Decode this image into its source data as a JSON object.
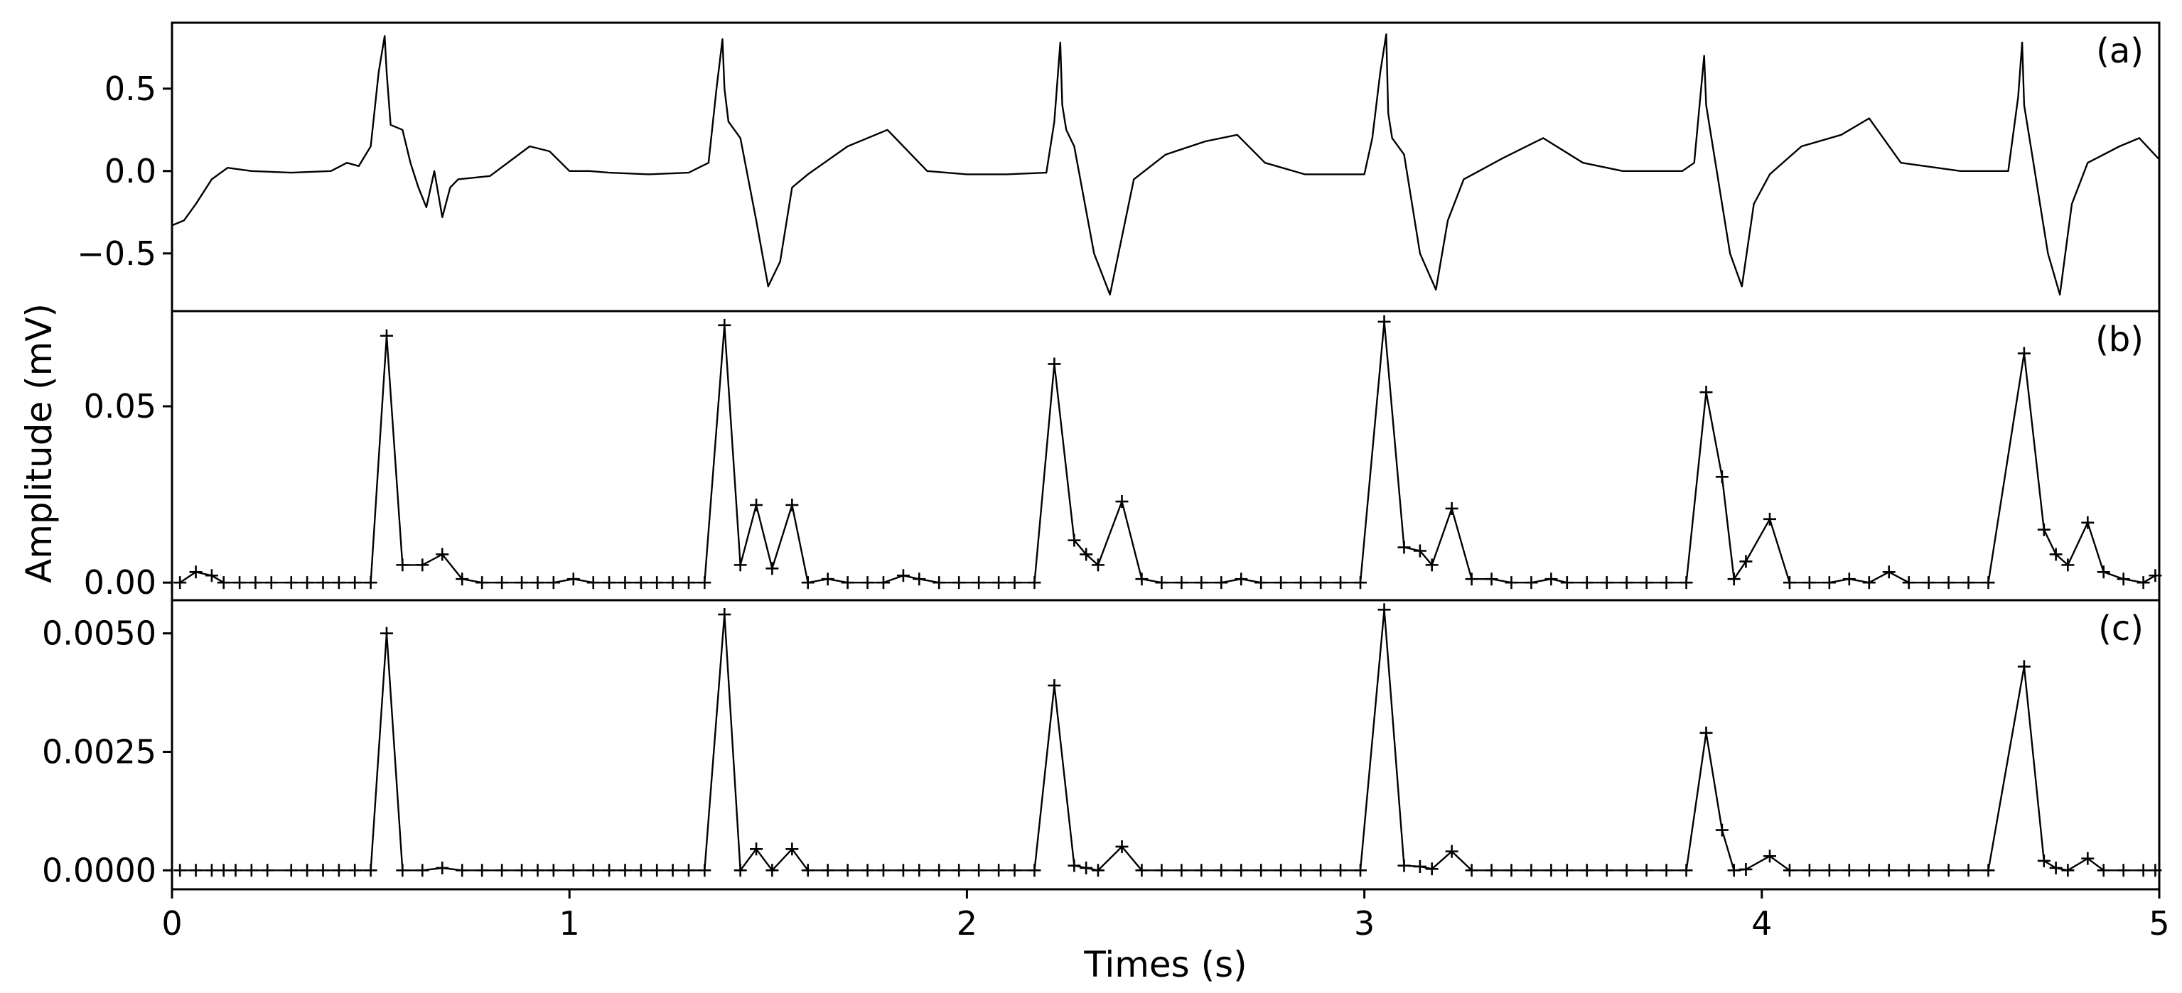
{
  "chart_data": {
    "type": "line",
    "xlabel": "Times (s)",
    "ylabel": "Amplitude (mV)",
    "xlim": [
      0,
      5
    ],
    "xticks": [
      "0",
      "1",
      "2",
      "3",
      "4",
      "5"
    ],
    "grid": false,
    "line_color": "#000000",
    "panels": [
      {
        "label": "(a)",
        "marker": "none",
        "ylim": [
          -0.85,
          0.9
        ],
        "yticks": [
          -0.5,
          0.0,
          0.5
        ],
        "ytick_labels": [
          "−0.5",
          "0.0",
          "0.5"
        ],
        "series": [
          {
            "x": [
              0,
              0.03,
              0.06,
              0.1,
              0.14,
              0.2,
              0.3,
              0.4,
              0.44,
              0.47,
              0.5,
              0.52,
              0.535,
              0.54,
              0.55,
              0.58,
              0.6,
              0.62,
              0.64,
              0.66,
              0.68,
              0.7,
              0.72,
              0.8,
              0.9,
              0.95,
              1.0,
              1.05,
              1.1,
              1.2,
              1.3,
              1.35,
              1.37,
              1.385,
              1.39,
              1.4,
              1.43,
              1.47,
              1.5,
              1.53,
              1.56,
              1.6,
              1.7,
              1.8,
              1.9,
              2.0,
              2.1,
              2.2,
              2.22,
              2.235,
              2.24,
              2.25,
              2.27,
              2.32,
              2.36,
              2.39,
              2.42,
              2.5,
              2.6,
              2.68,
              2.75,
              2.85,
              3.0,
              3.02,
              3.04,
              3.055,
              3.06,
              3.07,
              3.1,
              3.14,
              3.18,
              3.21,
              3.25,
              3.35,
              3.45,
              3.55,
              3.65,
              3.8,
              3.83,
              3.855,
              3.86,
              3.88,
              3.92,
              3.95,
              3.98,
              4.02,
              4.1,
              4.2,
              4.27,
              4.35,
              4.5,
              4.62,
              4.645,
              4.655,
              4.66,
              4.68,
              4.72,
              4.75,
              4.78,
              4.82,
              4.9,
              4.95,
              5.0
            ],
            "y": [
              -0.33,
              -0.3,
              -0.2,
              -0.05,
              0.02,
              0.0,
              -0.01,
              0.0,
              0.05,
              0.03,
              0.15,
              0.6,
              0.82,
              0.6,
              0.28,
              0.25,
              0.05,
              -0.1,
              -0.22,
              0.0,
              -0.28,
              -0.1,
              -0.05,
              -0.03,
              0.15,
              0.12,
              0.0,
              0.0,
              -0.01,
              -0.02,
              -0.01,
              0.05,
              0.5,
              0.8,
              0.5,
              0.3,
              0.2,
              -0.3,
              -0.7,
              -0.55,
              -0.1,
              -0.02,
              0.15,
              0.25,
              0.0,
              -0.02,
              -0.02,
              -0.01,
              0.3,
              0.78,
              0.4,
              0.25,
              0.15,
              -0.5,
              -0.75,
              -0.4,
              -0.05,
              0.1,
              0.18,
              0.22,
              0.05,
              -0.02,
              -0.02,
              0.2,
              0.6,
              0.83,
              0.35,
              0.2,
              0.1,
              -0.5,
              -0.72,
              -0.3,
              -0.05,
              0.08,
              0.2,
              0.05,
              0.0,
              0.0,
              0.05,
              0.7,
              0.4,
              0.1,
              -0.5,
              -0.7,
              -0.2,
              -0.02,
              0.15,
              0.22,
              0.32,
              0.05,
              0.0,
              0.0,
              0.45,
              0.78,
              0.4,
              0.1,
              -0.5,
              -0.75,
              -0.2,
              0.05,
              0.15,
              0.2,
              0.07
            ]
          }
        ]
      },
      {
        "label": "(b)",
        "marker": "+",
        "ylim": [
          -0.005,
          0.077
        ],
        "yticks": [
          0.0,
          0.05
        ],
        "ytick_labels": [
          "0.00",
          "0.05"
        ],
        "series": [
          {
            "x": [
              0.02,
              0.06,
              0.1,
              0.13,
              0.17,
              0.21,
              0.25,
              0.3,
              0.34,
              0.38,
              0.42,
              0.46,
              0.5,
              0.54,
              0.58,
              0.63,
              0.68,
              0.73,
              0.78,
              0.83,
              0.88,
              0.92,
              0.96,
              1.01,
              1.06,
              1.1,
              1.14,
              1.18,
              1.22,
              1.26,
              1.3,
              1.34,
              1.39,
              1.43,
              1.47,
              1.51,
              1.56,
              1.6,
              1.65,
              1.7,
              1.75,
              1.79,
              1.84,
              1.88,
              1.93,
              1.98,
              2.03,
              2.08,
              2.12,
              2.17,
              2.22,
              2.27,
              2.3,
              2.33,
              2.39,
              2.44,
              2.49,
              2.54,
              2.59,
              2.64,
              2.69,
              2.74,
              2.79,
              2.84,
              2.89,
              2.94,
              2.99,
              3.05,
              3.1,
              3.14,
              3.17,
              3.22,
              3.27,
              3.32,
              3.37,
              3.42,
              3.47,
              3.51,
              3.56,
              3.61,
              3.66,
              3.71,
              3.76,
              3.81,
              3.86,
              3.9,
              3.93,
              3.96,
              4.02,
              4.07,
              4.12,
              4.17,
              4.22,
              4.27,
              4.32,
              4.37,
              4.42,
              4.47,
              4.52,
              4.57,
              4.66,
              4.71,
              4.74,
              4.77,
              4.82,
              4.86,
              4.91,
              4.96,
              4.99
            ],
            "y": [
              0.0,
              0.003,
              0.002,
              0.0,
              0.0,
              0.0,
              0.0,
              0.0,
              0.0,
              0.0,
              0.0,
              0.0,
              0.0,
              0.07,
              0.005,
              0.005,
              0.008,
              0.001,
              0.0,
              0.0,
              0.0,
              0.0,
              0.0,
              0.001,
              0.0,
              0.0,
              0.0,
              0.0,
              0.0,
              0.0,
              0.0,
              0.0,
              0.073,
              0.005,
              0.022,
              0.004,
              0.022,
              0.0,
              0.001,
              0.0,
              0.0,
              0.0,
              0.002,
              0.001,
              0.0,
              0.0,
              0.0,
              0.0,
              0.0,
              0.0,
              0.062,
              0.012,
              0.008,
              0.005,
              0.023,
              0.001,
              0.0,
              0.0,
              0.0,
              0.0,
              0.001,
              0.0,
              0.0,
              0.0,
              0.0,
              0.0,
              0.0,
              0.074,
              0.01,
              0.009,
              0.005,
              0.021,
              0.001,
              0.001,
              0.0,
              0.0,
              0.001,
              0.0,
              0.0,
              0.0,
              0.0,
              0.0,
              0.0,
              0.0,
              0.054,
              0.03,
              0.001,
              0.006,
              0.018,
              0.0,
              0.0,
              0.0,
              0.001,
              0.0,
              0.003,
              0.0,
              0.0,
              0.0,
              0.0,
              0.0,
              0.065,
              0.015,
              0.008,
              0.005,
              0.017,
              0.003,
              0.001,
              0.0,
              0.002
            ]
          }
        ]
      },
      {
        "label": "(c)",
        "marker": "+",
        "ylim": [
          -0.0004,
          0.0057
        ],
        "yticks": [
          0.0,
          0.0025,
          0.005
        ],
        "ytick_labels": [
          "0.0000",
          "0.0025",
          "0.0050"
        ],
        "series": [
          {
            "x": [
              0.02,
              0.06,
              0.1,
              0.13,
              0.16,
              0.2,
              0.24,
              0.3,
              0.34,
              0.38,
              0.42,
              0.46,
              0.5,
              0.54,
              0.58,
              0.63,
              0.68,
              0.73,
              0.78,
              0.83,
              0.88,
              0.92,
              0.96,
              1.01,
              1.06,
              1.1,
              1.14,
              1.18,
              1.22,
              1.26,
              1.3,
              1.34,
              1.39,
              1.43,
              1.47,
              1.51,
              1.56,
              1.6,
              1.65,
              1.7,
              1.75,
              1.79,
              1.84,
              1.88,
              1.93,
              1.98,
              2.03,
              2.08,
              2.12,
              2.17,
              2.22,
              2.27,
              2.3,
              2.33,
              2.39,
              2.44,
              2.49,
              2.54,
              2.59,
              2.64,
              2.69,
              2.74,
              2.79,
              2.84,
              2.89,
              2.94,
              2.99,
              3.05,
              3.1,
              3.14,
              3.17,
              3.22,
              3.27,
              3.32,
              3.37,
              3.42,
              3.47,
              3.51,
              3.56,
              3.61,
              3.66,
              3.71,
              3.76,
              3.81,
              3.86,
              3.9,
              3.93,
              3.96,
              4.02,
              4.07,
              4.12,
              4.17,
              4.22,
              4.27,
              4.32,
              4.37,
              4.42,
              4.47,
              4.52,
              4.57,
              4.66,
              4.71,
              4.74,
              4.77,
              4.82,
              4.86,
              4.91,
              4.96,
              4.99
            ],
            "y": [
              0.0,
              0.0,
              0.0,
              0.0,
              0.0,
              0.0,
              0.0,
              0.0,
              0.0,
              0.0,
              0.0,
              0.0,
              0.0,
              0.005,
              0.0,
              0.0,
              5e-05,
              0.0,
              0.0,
              0.0,
              0.0,
              0.0,
              0.0,
              0.0,
              0.0,
              0.0,
              0.0,
              0.0,
              0.0,
              0.0,
              0.0,
              0.0,
              0.0054,
              0.0,
              0.00045,
              0.0,
              0.00045,
              0.0,
              0.0,
              0.0,
              0.0,
              0.0,
              0.0,
              0.0,
              0.0,
              0.0,
              0.0,
              0.0,
              0.0,
              0.0,
              0.0039,
              0.0001,
              5e-05,
              0.0,
              0.0005,
              0.0,
              0.0,
              0.0,
              0.0,
              0.0,
              0.0,
              0.0,
              0.0,
              0.0,
              0.0,
              0.0,
              0.0,
              0.0055,
              0.0001,
              8e-05,
              3e-05,
              0.0004,
              0.0,
              0.0,
              0.0,
              0.0,
              0.0,
              0.0,
              0.0,
              0.0,
              0.0,
              0.0,
              0.0,
              0.0,
              0.0029,
              0.00085,
              0.0,
              2e-05,
              0.0003,
              0.0,
              0.0,
              0.0,
              0.0,
              0.0,
              0.0,
              0.0,
              0.0,
              0.0,
              0.0,
              0.0,
              0.0043,
              0.0002,
              5e-05,
              0.0,
              0.00025,
              0.0,
              0.0,
              0.0,
              0.0
            ]
          }
        ]
      }
    ]
  }
}
